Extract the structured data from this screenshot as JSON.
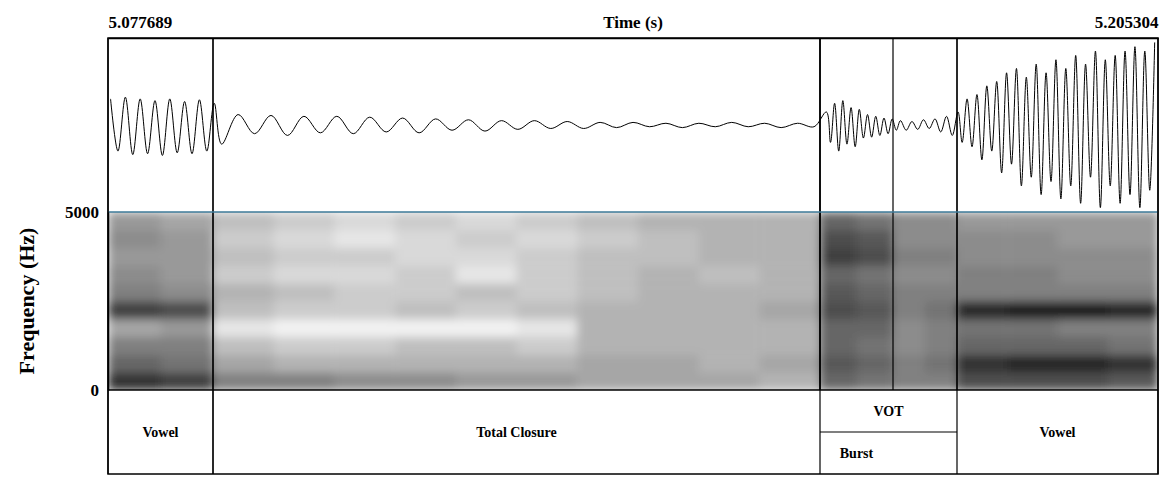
{
  "chart_data": {
    "type": "spectrogram",
    "x_label": "Time (s)",
    "y_label": "Frequency (Hz)",
    "xlim": [
      5.077689,
      5.205304
    ],
    "xticks": [
      5.077689,
      5.205304
    ],
    "ylim": [
      0,
      5000
    ],
    "yticks": [
      0,
      5000
    ],
    "waveform": {
      "ylim": [
        -1,
        1
      ],
      "x": [
        5.078,
        5.0789,
        5.0798,
        5.0807,
        5.0816,
        5.0825,
        5.0834,
        5.0843,
        5.0852,
        5.0861,
        5.087,
        5.0879,
        5.0888,
        5.0897,
        5.0906,
        5.0915,
        5.0935,
        5.0955,
        5.0975,
        5.0995,
        5.1015,
        5.1035,
        5.1055,
        5.1075,
        5.1095,
        5.1115,
        5.1135,
        5.1155,
        5.1175,
        5.1195,
        5.1215,
        5.1235,
        5.1255,
        5.1275,
        5.1295,
        5.1315,
        5.1335,
        5.1355,
        5.1375,
        5.1395,
        5.1415,
        5.1435,
        5.1455,
        5.1475,
        5.1495,
        5.1515,
        5.1535,
        5.1555,
        5.1575,
        5.1595,
        5.1615,
        5.1635,
        5.165,
        5.1655,
        5.166,
        5.1665,
        5.167,
        5.1675,
        5.168,
        5.1685,
        5.169,
        5.1695,
        5.17,
        5.1705,
        5.171,
        5.1715,
        5.172,
        5.1725,
        5.173,
        5.1735,
        5.174,
        5.1747,
        5.1754,
        5.1761,
        5.1768,
        5.1775,
        5.1782,
        5.1789,
        5.1796,
        5.1803,
        5.181,
        5.1815,
        5.1821,
        5.1827,
        5.1833,
        5.1839,
        5.1845,
        5.1851,
        5.1857,
        5.1863,
        5.1869,
        5.1875,
        5.1881,
        5.1887,
        5.1893,
        5.1899,
        5.1905,
        5.1911,
        5.1917,
        5.1923,
        5.1929,
        5.1935,
        5.1941,
        5.1947,
        5.1953,
        5.1959,
        5.1965,
        5.1971,
        5.1977,
        5.1983,
        5.1989,
        5.1995,
        5.2001,
        5.2007,
        5.2013,
        5.2019,
        5.2025,
        5.2031,
        5.2037,
        5.2043,
        5.2049
      ],
      "values": [
        0.3,
        -0.3,
        0.32,
        -0.34,
        0.3,
        -0.33,
        0.28,
        -0.35,
        0.3,
        -0.32,
        0.27,
        -0.33,
        0.29,
        -0.3,
        0.25,
        -0.22,
        0.12,
        -0.1,
        0.11,
        -0.12,
        0.1,
        -0.09,
        0.1,
        -0.1,
        0.09,
        -0.08,
        0.08,
        -0.09,
        0.07,
        -0.06,
        0.06,
        -0.07,
        0.05,
        -0.05,
        0.05,
        -0.04,
        0.04,
        -0.04,
        0.03,
        -0.03,
        0.03,
        -0.02,
        0.02,
        -0.03,
        0.02,
        -0.02,
        0.03,
        -0.02,
        0.02,
        -0.03,
        0.02,
        -0.02,
        0.15,
        -0.2,
        0.25,
        -0.3,
        0.28,
        -0.22,
        0.2,
        -0.25,
        0.18,
        -0.15,
        0.12,
        -0.14,
        0.1,
        -0.12,
        0.08,
        -0.1,
        0.07,
        -0.06,
        0.05,
        -0.06,
        0.04,
        -0.05,
        0.06,
        -0.04,
        0.07,
        -0.08,
        0.1,
        -0.12,
        0.15,
        -0.2,
        0.3,
        -0.25,
        0.35,
        -0.4,
        0.45,
        -0.3,
        0.5,
        -0.55,
        0.6,
        -0.45,
        0.65,
        -0.7,
        0.55,
        -0.6,
        0.7,
        -0.8,
        0.6,
        -0.65,
        0.75,
        -0.85,
        0.65,
        -0.7,
        0.8,
        -0.9,
        0.7,
        -0.6,
        0.85,
        -0.95,
        0.75,
        -0.7,
        0.8,
        -0.9,
        0.85,
        -0.8,
        0.9,
        -0.95,
        0.85,
        -0.75,
        0.95
      ]
    },
    "spectrogram": {
      "zlim": [
        0,
        1
      ],
      "x_edges": [
        5.077689,
        5.08407,
        5.090451,
        5.097828,
        5.105205,
        5.112583,
        5.11996,
        5.127337,
        5.134715,
        5.142092,
        5.149469,
        5.156847,
        5.164224,
        5.168661,
        5.173097,
        5.176986,
        5.180875,
        5.186982,
        5.19309,
        5.199197,
        5.205304
      ],
      "y_edges": [
        0,
        500,
        1000,
        1500,
        2000,
        2500,
        3000,
        3500,
        4000,
        4500,
        5000
      ],
      "z": [
        [
          0.8,
          0.75,
          0.5,
          0.5,
          0.45,
          0.45,
          0.4,
          0.4,
          0.35,
          0.35,
          0.35,
          0.3,
          0.6,
          0.55,
          0.5,
          0.5,
          0.7,
          0.7,
          0.7,
          0.65
        ],
        [
          0.6,
          0.55,
          0.35,
          0.3,
          0.3,
          0.3,
          0.3,
          0.3,
          0.35,
          0.35,
          0.3,
          0.35,
          0.65,
          0.6,
          0.5,
          0.55,
          0.8,
          0.85,
          0.85,
          0.8
        ],
        [
          0.5,
          0.5,
          0.25,
          0.2,
          0.2,
          0.25,
          0.25,
          0.2,
          0.3,
          0.3,
          0.3,
          0.3,
          0.6,
          0.55,
          0.45,
          0.5,
          0.6,
          0.6,
          0.6,
          0.55
        ],
        [
          0.35,
          0.4,
          0.1,
          0.05,
          0.05,
          0.05,
          0.05,
          0.1,
          0.3,
          0.3,
          0.3,
          0.3,
          0.6,
          0.6,
          0.45,
          0.5,
          0.55,
          0.55,
          0.5,
          0.5
        ],
        [
          0.75,
          0.7,
          0.25,
          0.2,
          0.2,
          0.25,
          0.2,
          0.25,
          0.3,
          0.3,
          0.3,
          0.35,
          0.7,
          0.65,
          0.5,
          0.55,
          0.85,
          0.9,
          0.9,
          0.85
        ],
        [
          0.5,
          0.45,
          0.3,
          0.25,
          0.2,
          0.2,
          0.25,
          0.2,
          0.25,
          0.3,
          0.3,
          0.3,
          0.65,
          0.6,
          0.5,
          0.5,
          0.5,
          0.5,
          0.5,
          0.5
        ],
        [
          0.45,
          0.4,
          0.2,
          0.15,
          0.15,
          0.2,
          0.1,
          0.2,
          0.25,
          0.3,
          0.25,
          0.3,
          0.6,
          0.55,
          0.45,
          0.45,
          0.5,
          0.5,
          0.45,
          0.45
        ],
        [
          0.4,
          0.4,
          0.25,
          0.2,
          0.2,
          0.15,
          0.15,
          0.2,
          0.25,
          0.25,
          0.3,
          0.3,
          0.75,
          0.7,
          0.5,
          0.5,
          0.45,
          0.45,
          0.45,
          0.45
        ],
        [
          0.45,
          0.4,
          0.2,
          0.15,
          0.1,
          0.15,
          0.2,
          0.15,
          0.2,
          0.25,
          0.3,
          0.3,
          0.7,
          0.65,
          0.45,
          0.45,
          0.45,
          0.45,
          0.4,
          0.4
        ],
        [
          0.4,
          0.35,
          0.25,
          0.2,
          0.15,
          0.2,
          0.15,
          0.2,
          0.25,
          0.3,
          0.3,
          0.3,
          0.6,
          0.55,
          0.45,
          0.45,
          0.4,
          0.4,
          0.4,
          0.4
        ]
      ]
    },
    "segments": [
      {
        "label": "Vowel",
        "start": 5.077689,
        "end": 5.090451
      },
      {
        "label": "Total Closure",
        "start": 5.090451,
        "end": 5.164224
      },
      {
        "upper": {
          "label": "VOT",
          "start": 5.164224,
          "end": 5.180875
        },
        "lower": {
          "label": "Burst",
          "start": 5.164224,
          "end": 5.173097
        }
      },
      {
        "label": "Vowel",
        "start": 5.180875,
        "end": 5.205304
      }
    ]
  }
}
